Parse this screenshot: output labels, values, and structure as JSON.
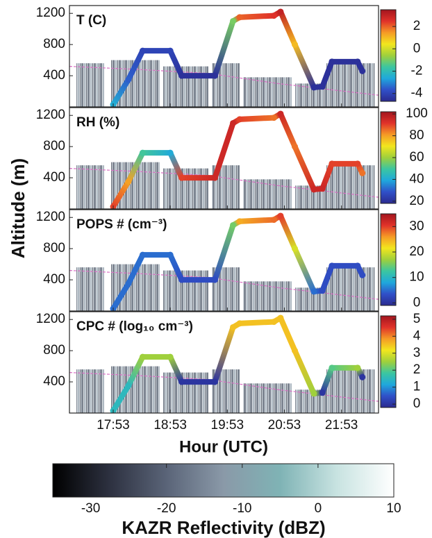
{
  "chart_data": {
    "type": "line",
    "x_label": "Hour (UTC)",
    "y_label": "Altitude (m)",
    "xlim": [
      1027,
      1352
    ],
    "xticks": [
      {
        "value": 1073,
        "label": "17:53"
      },
      {
        "value": 1133,
        "label": "18:53"
      },
      {
        "value": 1193,
        "label": "19:53"
      },
      {
        "value": 1253,
        "label": "20:53"
      },
      {
        "value": 1313,
        "label": "21:53"
      }
    ],
    "ylim": [
      0,
      1300
    ],
    "yticks": [
      400,
      800,
      1200
    ],
    "x": [
      1073,
      1089,
      1104,
      1133,
      1145,
      1180,
      1199,
      1206,
      1242,
      1249,
      1264,
      1284,
      1293,
      1303,
      1330,
      1335
    ],
    "y": [
      30,
      350,
      720,
      720,
      400,
      400,
      1100,
      1150,
      1170,
      1220,
      800,
      250,
      260,
      580,
      580,
      460
    ],
    "colormap": [
      "#2b2a8f",
      "#3050c8",
      "#1fa8dc",
      "#3cc6a0",
      "#9fd03c",
      "#f2e61e",
      "#f59a26",
      "#e0322a",
      "#a3151e"
    ],
    "panels": [
      {
        "label": "T (C)",
        "clim": [
          -4.7,
          3.5
        ],
        "cticks": [
          -4,
          -2,
          0,
          2
        ],
        "values": [
          -2.5,
          -3.5,
          -4,
          -4,
          -4.5,
          -4.5,
          -1,
          2,
          2.5,
          3,
          1,
          -4.5,
          -4.5,
          -4.5,
          -4.5,
          -4.5
        ]
      },
      {
        "label": "RH (%)",
        "clim": [
          18,
          102
        ],
        "cticks": [
          20,
          40,
          60,
          80,
          100
        ],
        "values": [
          90,
          80,
          50,
          40,
          90,
          95,
          95,
          90,
          85,
          95,
          85,
          95,
          95,
          90,
          90,
          85
        ]
      },
      {
        "label": "POPS # (cm⁻³)",
        "clim": [
          -1,
          35
        ],
        "cticks": [
          0,
          10,
          20,
          30
        ],
        "values": [
          5,
          5,
          5,
          5,
          3,
          3,
          15,
          25,
          28,
          30,
          20,
          5,
          3,
          3,
          3,
          3
        ]
      },
      {
        "label": "CPC # (log₁₀ cm⁻³)",
        "clim": [
          -0.2,
          5.2
        ],
        "cticks": [
          0,
          1,
          2,
          3,
          4,
          5
        ],
        "values": [
          1.5,
          1.5,
          2.5,
          2.5,
          0,
          0,
          3.5,
          3.5,
          3.5,
          3.5,
          3.5,
          2.5,
          0,
          2,
          2.5,
          0
        ]
      }
    ],
    "reflectivity": {
      "label": "KAZR Reflectivity (dBZ)",
      "clim": [
        -35,
        10
      ],
      "ticks": [
        -30,
        -20,
        -10,
        0,
        10
      ],
      "colormap": [
        "#000000",
        "#2d3140",
        "#5a6478",
        "#8a99a8",
        "#7fb3b5",
        "#c8e3e1",
        "#ffffff"
      ]
    }
  }
}
